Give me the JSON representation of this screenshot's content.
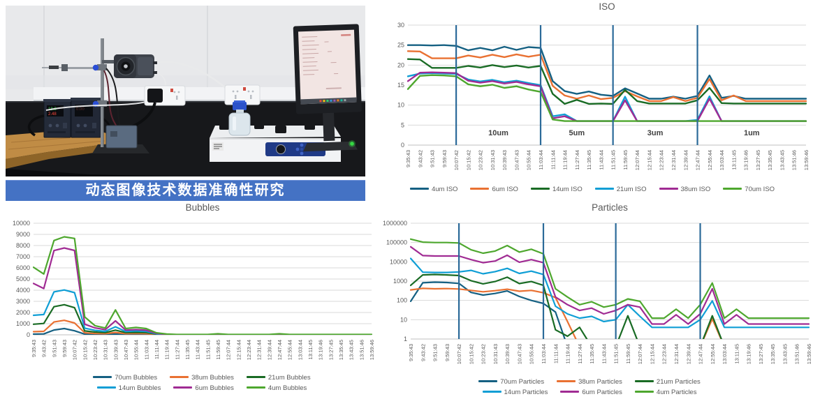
{
  "banner": {
    "text": "动态图像技术数据准确性研究",
    "bg_color": "#4472C4",
    "text_color": "#ffffff"
  },
  "palette": {
    "dark_blue": "#156082",
    "orange": "#E97132",
    "dark_green": "#196B24",
    "light_blue": "#0F9ED5",
    "magenta": "#A02B93",
    "green": "#4EA72E",
    "divider_blue": "#2B6A99",
    "gridline": "#D9D9D9",
    "axis_text": "#595959"
  },
  "chart_data": [
    {
      "type": "line",
      "title": "ISO",
      "y_scale": "linear",
      "ylim": [
        0,
        30
      ],
      "yticks": [
        0,
        5,
        10,
        15,
        20,
        25,
        30
      ],
      "grid": true,
      "legend_position": "bottom",
      "categories": [
        "9:35:43",
        "9:43:42",
        "9:51:43",
        "9:59:43",
        "10:07:42",
        "10:15:42",
        "10:23:42",
        "10:31:43",
        "10:39:43",
        "10:47:43",
        "10:55:44",
        "11:03:44",
        "11:11:44",
        "11:19:44",
        "11:27:44",
        "11:35:45",
        "11:43:44",
        "11:51:45",
        "11:59:45",
        "12:07:44",
        "12:15:44",
        "12:23:44",
        "12:31:44",
        "12:39:44",
        "12:47:44",
        "12:55:44",
        "13:03:44",
        "13:11:45",
        "13:19:46",
        "13:27:45",
        "13:35:45",
        "13:43:45",
        "13:51:46",
        "13:59:46"
      ],
      "dividers": {
        "indices": [
          4,
          11,
          17,
          24
        ],
        "color": "#2B6A99"
      },
      "region_labels": [
        {
          "text": "10um",
          "index": 7.5
        },
        {
          "text": "5um",
          "index": 14
        },
        {
          "text": "3um",
          "index": 20.5
        },
        {
          "text": "1um",
          "index": 28.5
        }
      ],
      "legend_layout": [
        [
          0,
          1,
          2,
          3,
          4,
          5
        ]
      ],
      "series": [
        {
          "name": "4um ISO",
          "color": "#156082",
          "values": [
            25.0,
            25.0,
            24.9,
            25.0,
            24.8,
            23.7,
            24.3,
            23.7,
            24.6,
            23.8,
            24.5,
            24.3,
            16.0,
            13.5,
            12.8,
            13.4,
            12.6,
            12.3,
            14.2,
            12.9,
            11.6,
            11.6,
            12.1,
            11.6,
            12.3,
            17.4,
            11.8,
            12.3,
            11.6,
            11.6,
            11.6,
            11.6,
            11.6,
            11.6
          ]
        },
        {
          "name": "6um ISO",
          "color": "#E97132",
          "values": [
            23.5,
            23.4,
            21.7,
            21.7,
            21.7,
            22.4,
            21.9,
            22.6,
            22.0,
            22.7,
            22.1,
            22.6,
            14.8,
            12.4,
            11.6,
            12.4,
            11.5,
            11.8,
            13.5,
            12.2,
            11.0,
            11.0,
            12.0,
            11.0,
            11.8,
            16.5,
            11.2,
            12.4,
            11.0,
            11.0,
            11.0,
            11.0,
            11.0,
            11.0
          ]
        },
        {
          "name": "14um ISO",
          "color": "#196B24",
          "values": [
            21.5,
            21.4,
            19.3,
            19.3,
            19.3,
            19.8,
            19.4,
            20.0,
            19.5,
            19.9,
            19.4,
            19.8,
            12.8,
            10.3,
            11.3,
            10.3,
            10.4,
            10.3,
            13.8,
            11.0,
            10.4,
            10.4,
            10.4,
            10.4,
            11.2,
            14.3,
            10.5,
            10.4,
            10.4,
            10.4,
            10.4,
            10.4,
            10.4,
            10.4
          ]
        },
        {
          "name": "21um ISO",
          "color": "#0F9ED5",
          "values": [
            17.2,
            17.9,
            18.0,
            17.9,
            17.8,
            16.4,
            15.9,
            16.3,
            15.7,
            16.1,
            15.5,
            15.0,
            7.2,
            7.7,
            6.0,
            6.0,
            6.0,
            6.0,
            12.1,
            6.0,
            6.0,
            6.0,
            6.0,
            6.0,
            6.3,
            12.2,
            6.0,
            6.0,
            6.0,
            6.0,
            6.0,
            6.0,
            6.0,
            6.0
          ]
        },
        {
          "name": "38um ISO",
          "color": "#A02B93",
          "values": [
            16.0,
            18.1,
            18.2,
            18.1,
            18.0,
            16.1,
            15.6,
            16.0,
            15.4,
            15.8,
            15.2,
            14.7,
            6.7,
            7.2,
            6.0,
            6.0,
            6.0,
            6.0,
            11.2,
            6.0,
            6.0,
            6.0,
            6.0,
            6.0,
            6.0,
            11.6,
            6.0,
            6.0,
            6.0,
            6.0,
            6.0,
            6.0,
            6.0,
            6.0
          ]
        },
        {
          "name": "70um ISO",
          "color": "#4EA72E",
          "values": [
            14.0,
            17.3,
            17.5,
            17.4,
            17.2,
            15.2,
            14.7,
            15.1,
            14.3,
            14.7,
            13.9,
            13.3,
            6.4,
            6.0,
            6.0,
            6.0,
            6.0,
            6.0,
            6.0,
            6.0,
            6.0,
            6.0,
            6.0,
            6.0,
            6.0,
            6.0,
            6.0,
            6.0,
            6.0,
            6.0,
            6.0,
            6.0,
            6.0,
            6.0
          ]
        }
      ]
    },
    {
      "type": "line",
      "title": "Bubbles",
      "y_scale": "linear",
      "ylim": [
        0,
        10000
      ],
      "yticks": [
        0,
        1000,
        2000,
        3000,
        4000,
        5000,
        6000,
        7000,
        8000,
        9000,
        10000
      ],
      "grid": true,
      "legend_position": "bottom",
      "categories": [
        "9:35:43",
        "9:43:42",
        "9:51:43",
        "9:59:43",
        "10:07:42",
        "10:15:42",
        "10:23:42",
        "10:31:43",
        "10:39:43",
        "10:47:43",
        "10:55:44",
        "11:03:44",
        "11:11:44",
        "11:19:44",
        "11:27:44",
        "11:35:45",
        "11:43:44",
        "11:51:45",
        "11:59:45",
        "12:07:44",
        "12:15:44",
        "12:23:44",
        "12:31:44",
        "12:39:44",
        "12:47:44",
        "12:55:44",
        "13:03:44",
        "13:11:45",
        "13:19:46",
        "13:27:45",
        "13:35:45",
        "13:43:45",
        "13:51:46",
        "13:59:46"
      ],
      "legend_layout": [
        [
          0,
          1,
          2
        ],
        [
          3,
          4,
          5
        ]
      ],
      "series": [
        {
          "name": "70um Bubbles",
          "color": "#156082",
          "values": [
            60,
            80,
            430,
            560,
            360,
            60,
            40,
            30,
            70,
            30,
            35,
            30,
            10,
            2,
            1,
            1,
            1,
            1,
            2,
            1,
            1,
            1,
            1,
            1,
            2,
            1,
            1,
            1,
            1,
            1,
            1,
            1,
            1,
            1
          ]
        },
        {
          "name": "38um Bubbles",
          "color": "#E97132",
          "values": [
            280,
            310,
            1150,
            1300,
            1060,
            180,
            120,
            100,
            210,
            100,
            110,
            100,
            30,
            6,
            3,
            3,
            3,
            3,
            6,
            3,
            3,
            3,
            3,
            3,
            6,
            3,
            3,
            3,
            3,
            3,
            3,
            3,
            3,
            3
          ]
        },
        {
          "name": "21um Bubbles",
          "color": "#196B24",
          "values": [
            950,
            1020,
            2520,
            2700,
            2430,
            350,
            250,
            200,
            420,
            200,
            220,
            200,
            55,
            12,
            6,
            6,
            6,
            6,
            12,
            6,
            6,
            6,
            6,
            6,
            12,
            6,
            6,
            6,
            6,
            6,
            6,
            6,
            6,
            6
          ]
        },
        {
          "name": "14um Bubbles",
          "color": "#0F9ED5",
          "values": [
            1750,
            1820,
            3850,
            4020,
            3780,
            600,
            400,
            310,
            720,
            300,
            350,
            300,
            85,
            20,
            10,
            10,
            10,
            10,
            22,
            10,
            10,
            10,
            10,
            10,
            22,
            10,
            10,
            10,
            10,
            10,
            10,
            10,
            10,
            10
          ]
        },
        {
          "name": "6um Bubbles",
          "color": "#A02B93",
          "values": [
            4600,
            4150,
            7550,
            7780,
            7560,
            950,
            620,
            460,
            1250,
            420,
            470,
            410,
            130,
            40,
            18,
            18,
            18,
            18,
            45,
            18,
            18,
            18,
            18,
            18,
            45,
            18,
            18,
            18,
            18,
            18,
            18,
            18,
            18,
            18
          ]
        },
        {
          "name": "4um Bubbles",
          "color": "#4EA72E",
          "values": [
            6050,
            5450,
            8450,
            8780,
            8640,
            1600,
            820,
            610,
            2230,
            560,
            660,
            560,
            180,
            70,
            30,
            30,
            30,
            30,
            95,
            30,
            30,
            30,
            30,
            30,
            95,
            30,
            30,
            30,
            30,
            30,
            30,
            30,
            30,
            30
          ]
        }
      ]
    },
    {
      "type": "line",
      "title": "Particles",
      "y_scale": "log",
      "ylim": [
        1,
        1000000
      ],
      "yticks": [
        1,
        10,
        100,
        1000,
        10000,
        100000,
        1000000
      ],
      "grid": true,
      "legend_position": "bottom",
      "categories": [
        "9:35:43",
        "9:43:42",
        "9:51:43",
        "9:59:43",
        "10:07:42",
        "10:15:42",
        "10:23:42",
        "10:31:43",
        "10:39:43",
        "10:47:43",
        "10:55:44",
        "11:03:44",
        "11:11:44",
        "11:19:44",
        "11:27:44",
        "11:35:45",
        "11:43:44",
        "11:51:45",
        "11:59:45",
        "12:07:44",
        "12:15:44",
        "12:23:44",
        "12:31:44",
        "12:39:44",
        "12:47:44",
        "12:55:44",
        "13:03:44",
        "13:11:45",
        "13:19:46",
        "13:27:45",
        "13:35:45",
        "13:43:45",
        "13:51:46",
        "13:59:46"
      ],
      "dividers": {
        "indices": [
          4,
          11,
          17,
          24
        ],
        "color": "#2B6A99"
      },
      "legend_layout": [
        [
          0,
          1,
          2
        ],
        [
          3,
          4,
          5
        ]
      ],
      "series": [
        {
          "name": "70um Particles",
          "color": "#156082",
          "values": [
            90,
            820,
            880,
            850,
            760,
            260,
            190,
            230,
            310,
            160,
            100,
            70,
            25,
            0.4,
            0.4,
            0.4,
            0.4,
            0.4,
            0.4,
            0.4,
            0.4,
            0.4,
            0.4,
            0.4,
            0.4,
            0.4,
            0.4,
            0.4,
            0.4,
            0.4,
            0.4,
            0.4,
            0.4,
            0.4
          ]
        },
        {
          "name": "38um Particles",
          "color": "#E97132",
          "values": [
            350,
            420,
            400,
            410,
            390,
            330,
            280,
            320,
            380,
            300,
            330,
            250,
            140,
            8,
            0.4,
            0.4,
            0.4,
            0.4,
            0.4,
            0.4,
            0.4,
            0.4,
            0.4,
            0.4,
            0.4,
            11,
            0.4,
            0.4,
            0.4,
            0.4,
            0.4,
            0.4,
            0.4,
            0.4
          ]
        },
        {
          "name": "21um Particles",
          "color": "#196B24",
          "values": [
            600,
            2100,
            2200,
            2100,
            1950,
            1050,
            720,
            950,
            1600,
            750,
            950,
            600,
            3,
            1.4,
            4,
            0.4,
            0.4,
            0.4,
            16,
            0.4,
            0.4,
            0.4,
            0.4,
            0.4,
            0.4,
            16,
            0.4,
            0.4,
            0.4,
            0.4,
            0.4,
            0.4,
            0.4,
            0.4
          ]
        },
        {
          "name": "14um Particles",
          "color": "#0F9ED5",
          "values": [
            15000,
            2900,
            2800,
            2800,
            3000,
            3600,
            2400,
            3100,
            4600,
            2500,
            3300,
            2200,
            50,
            20,
            12,
            15,
            8,
            10,
            60,
            15,
            4,
            4,
            4,
            4,
            10,
            95,
            4,
            4,
            4,
            4,
            4,
            4,
            4,
            4
          ]
        },
        {
          "name": "6um Particles",
          "color": "#A02B93",
          "values": [
            60000,
            21000,
            20000,
            20000,
            20000,
            13000,
            9000,
            11000,
            22000,
            9500,
            13000,
            9000,
            150,
            60,
            30,
            40,
            20,
            30,
            60,
            45,
            6,
            6,
            18,
            6,
            20,
            400,
            6,
            18,
            6,
            6,
            6,
            6,
            6,
            6
          ]
        },
        {
          "name": "4um Particles",
          "color": "#4EA72E",
          "values": [
            150000,
            105000,
            100000,
            100000,
            95000,
            42000,
            28000,
            36000,
            70000,
            32000,
            45000,
            26000,
            400,
            150,
            60,
            85,
            45,
            60,
            120,
            90,
            12,
            12,
            35,
            12,
            60,
            800,
            12,
            35,
            12,
            12,
            12,
            12,
            12,
            12
          ]
        }
      ]
    }
  ]
}
